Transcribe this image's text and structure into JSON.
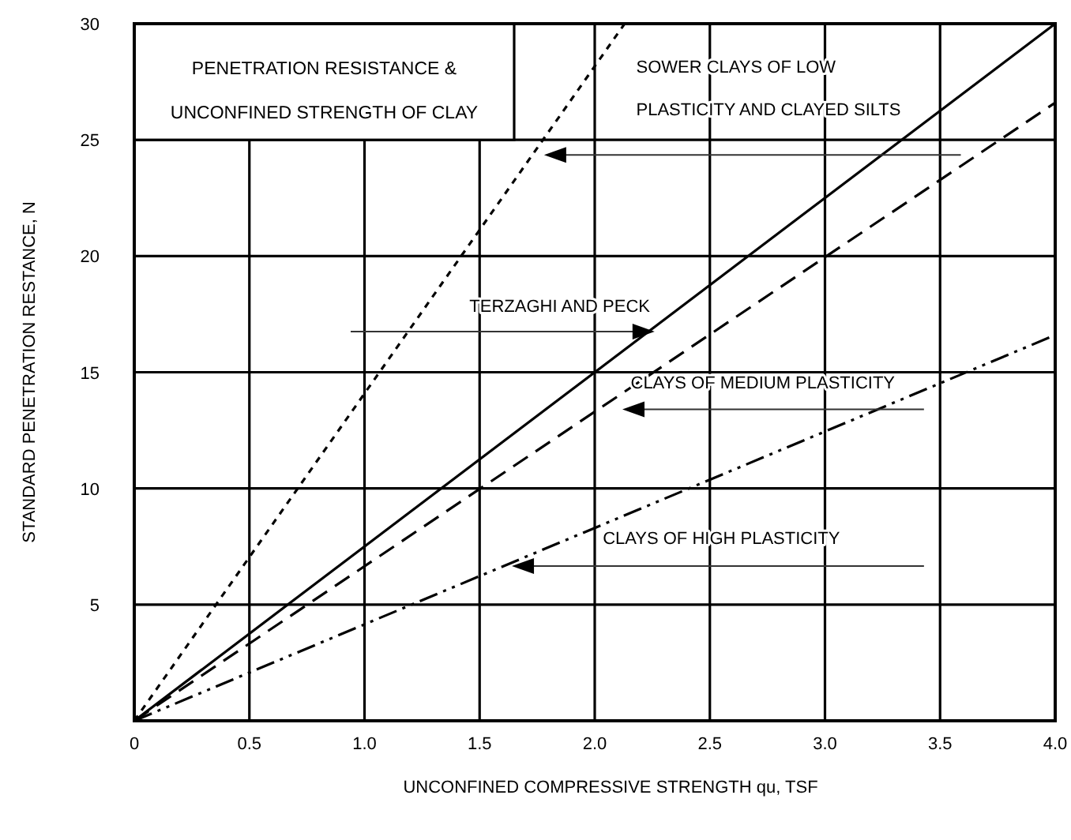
{
  "chart_data": {
    "type": "line",
    "title": "PENETRATION RESISTANCE &\nUNCONFINED STRENGTH OF CLAY",
    "xlabel": "UNCONFINED COMPRESSIVE STRENGTH qu, TSF",
    "ylabel": "STANDARD PENETRATION RESTANCE, N",
    "series": [
      {
        "name": "SOWER CLAYS OF LOW\nPLASTICITY AND CLAYED SILTS",
        "color": "#000000",
        "x": [
          0,
          2.13
        ],
        "values": [
          0,
          30
        ],
        "line_style": "dotted"
      },
      {
        "name": "TERZAGHI AND PECK",
        "color": "#000000",
        "x": [
          0,
          4
        ],
        "values": [
          0,
          30
        ],
        "line_style": "solid"
      },
      {
        "name": "CLAYS OF MEDIUM PLASTICITY",
        "color": "#000000",
        "x": [
          0,
          4
        ],
        "values": [
          0,
          26.6
        ],
        "line_style": "dashed"
      },
      {
        "name": "CLAYS OF HIGH PLASTICITY",
        "color": "#000000",
        "x": [
          0,
          4
        ],
        "values": [
          0,
          16.6
        ],
        "line_style": "dashdotdot"
      }
    ],
    "xlim": [
      0,
      4
    ],
    "xticks": [
      0,
      0.5,
      {
        "value": 1,
        "label": "1.0"
      },
      1.5,
      {
        "value": 2,
        "label": "2.0"
      },
      2.5,
      {
        "value": 3,
        "label": "3.0"
      },
      3.5,
      {
        "value": 4,
        "label": "4.0"
      }
    ],
    "ylim": [
      0,
      30
    ],
    "yticks": [
      {
        "value": 0,
        "label": null
      },
      5,
      10,
      15,
      20,
      25,
      30
    ],
    "grid": true
  }
}
